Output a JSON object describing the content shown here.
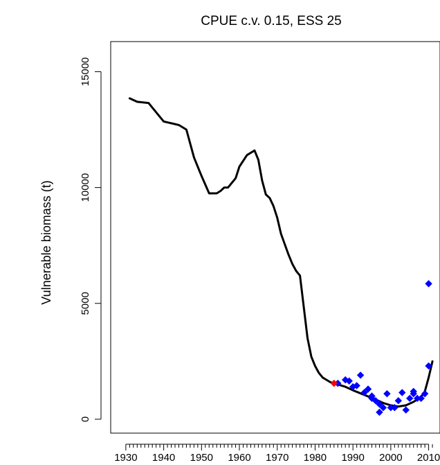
{
  "chart_data": {
    "type": "line",
    "title": "CPUE c.v. 0.15, ESS 25",
    "xlabel": "",
    "ylabel": "Vulnerable biomass (t)",
    "xlim": [
      1926,
      2013
    ],
    "ylim": [
      -600,
      16300
    ],
    "x_ticks": [
      1930,
      1940,
      1950,
      1960,
      1970,
      1980,
      1990,
      2000,
      2010
    ],
    "x_tick_labels": [
      "1930",
      "1940",
      "1950",
      "1960",
      "1970",
      "1980",
      "1990",
      "2000",
      "2010"
    ],
    "y_ticks": [
      0,
      5000,
      10000,
      15000
    ],
    "y_tick_labels": [
      "0",
      "5000",
      "10000",
      "15000"
    ],
    "grid": false,
    "legend": "none",
    "colors": {
      "line": "#000000",
      "points": "#0000ff",
      "highlight": "#ff0000"
    },
    "series": [
      {
        "type": "line",
        "x": [
          1931,
          1933,
          1936,
          1940,
          1944,
          1946,
          1948,
          1950,
          1952,
          1954,
          1955,
          1956,
          1957,
          1959,
          1960,
          1962,
          1964,
          1965,
          1966,
          1967,
          1968,
          1969,
          1970,
          1971,
          1973,
          1974,
          1975,
          1976,
          1978,
          1979,
          1980,
          1981,
          1982,
          1983,
          1984,
          1986,
          1988,
          1990,
          1993,
          1996,
          1998,
          2000,
          2002,
          2004,
          2006,
          2008,
          2009,
          2010,
          2011
        ],
        "y": [
          13850,
          13700,
          13650,
          12850,
          12700,
          12500,
          11300,
          10500,
          9750,
          9750,
          9850,
          10000,
          10000,
          10400,
          10900,
          11400,
          11600,
          11200,
          10300,
          9700,
          9550,
          9200,
          8700,
          8000,
          7100,
          6700,
          6400,
          6200,
          3500,
          2700,
          2300,
          2000,
          1800,
          1700,
          1600,
          1500,
          1400,
          1250,
          1050,
          850,
          700,
          600,
          550,
          600,
          750,
          950,
          1200,
          1800,
          2500
        ]
      },
      {
        "type": "scatter",
        "x": [
          1986,
          1988,
          1989,
          1990,
          1991,
          1992,
          1993,
          1994,
          1995,
          1995,
          1996,
          1997,
          1997,
          1998,
          1999,
          2000,
          2001,
          2002,
          2003,
          2004,
          2005,
          2006,
          2006,
          2007,
          2008,
          2009,
          2010,
          2010
        ],
        "y": [
          1550,
          1700,
          1650,
          1400,
          1450,
          1900,
          1150,
          1300,
          900,
          1000,
          800,
          650,
          300,
          500,
          1100,
          500,
          500,
          800,
          1150,
          400,
          900,
          1100,
          1200,
          900,
          900,
          1100,
          2300,
          5850
        ]
      },
      {
        "type": "scatter",
        "x": [
          1985
        ],
        "y": [
          1550
        ]
      }
    ]
  }
}
